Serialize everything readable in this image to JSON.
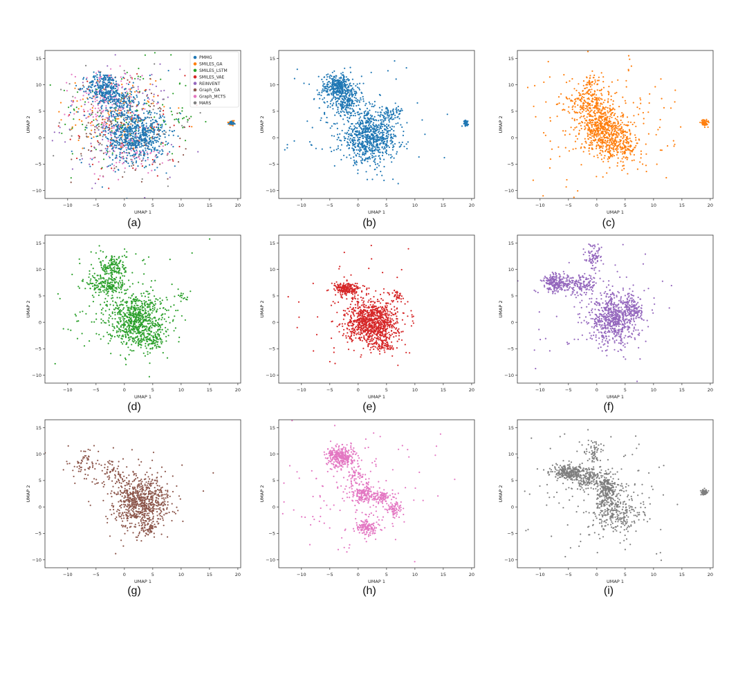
{
  "figure": {
    "panel_letters": [
      "(a)",
      "(b)",
      "(c)",
      "(d)",
      "(e)",
      "(f)",
      "(g)",
      "(h)",
      "(i)"
    ]
  },
  "axis": {
    "xlabel": "UMAP 1",
    "ylabel": "UMAP 2",
    "x_ticks": [
      "−10",
      "−5",
      "0",
      "5",
      "10",
      "15",
      "20"
    ],
    "y_ticks": [
      "15",
      "10",
      "5",
      "0",
      "−5",
      "−10"
    ]
  },
  "legend": {
    "entries": [
      "PMMG",
      "SMILES_GA",
      "SMILES_LSTM",
      "SMILES_VAE",
      "REINVENT",
      "Graph_GA",
      "Graph_MCTS",
      "MARS"
    ]
  },
  "chart_data": [
    {
      "panel": "(a)",
      "type": "scatter",
      "title": "",
      "xlabel": "UMAP 1",
      "ylabel": "UMAP 2",
      "xlim": [
        -14,
        20.5
      ],
      "ylim": [
        -11.5,
        16.5
      ],
      "legend_position": "top-right",
      "series": [
        {
          "name": "SMILES_GA",
          "color": "#ff7f0e",
          "clusters": [
            {
              "cx": -2,
              "cy": 5,
              "sx": 5,
              "sy": 4,
              "n": 120
            },
            {
              "cx": 18.9,
              "cy": 2.8,
              "sx": 0.3,
              "sy": 0.3,
              "n": 40
            }
          ]
        },
        {
          "name": "SMILES_LSTM",
          "color": "#2ca02c",
          "clusters": [
            {
              "cx": 0,
              "cy": 4,
              "sx": 6,
              "sy": 5,
              "n": 110
            },
            {
              "cx": 10.5,
              "cy": 3.5,
              "sx": 0.8,
              "sy": 0.5,
              "n": 10
            }
          ]
        },
        {
          "name": "SMILES_VAE",
          "color": "#d62728",
          "clusters": [
            {
              "cx": 1,
              "cy": 2,
              "sx": 5,
              "sy": 5,
              "n": 80
            }
          ]
        },
        {
          "name": "REINVENT",
          "color": "#9467bd",
          "clusters": [
            {
              "cx": -1,
              "cy": 3,
              "sx": 5,
              "sy": 5,
              "n": 110
            }
          ]
        },
        {
          "name": "Graph_GA",
          "color": "#8c564b",
          "clusters": [
            {
              "cx": 1,
              "cy": 1,
              "sx": 5,
              "sy": 5,
              "n": 110
            }
          ]
        },
        {
          "name": "Graph_MCTS",
          "color": "#e377c2",
          "clusters": [
            {
              "cx": -3,
              "cy": 7,
              "sx": 3,
              "sy": 3,
              "n": 160
            },
            {
              "cx": 1,
              "cy": -3,
              "sx": 3,
              "sy": 2,
              "n": 80
            }
          ]
        },
        {
          "name": "MARS",
          "color": "#7f7f7f",
          "clusters": [
            {
              "cx": 0,
              "cy": 3,
              "sx": 6,
              "sy": 6,
              "n": 90
            }
          ]
        },
        {
          "name": "PMMG",
          "color": "#1f77b4",
          "clusters": [
            {
              "cx": -3.5,
              "cy": 9.5,
              "sx": 1.6,
              "sy": 1.4,
              "n": 260
            },
            {
              "cx": -1,
              "cy": 7,
              "sx": 1.6,
              "sy": 1.2,
              "n": 140
            },
            {
              "cx": 2,
              "cy": 0.5,
              "sx": 2.6,
              "sy": 2.5,
              "n": 650
            },
            {
              "cx": 18.9,
              "cy": 2.8,
              "sx": 0.25,
              "sy": 0.25,
              "n": 20
            },
            {
              "cx": 0,
              "cy": 3,
              "sx": 5,
              "sy": 5,
              "n": 60
            }
          ]
        }
      ]
    },
    {
      "panel": "(b)",
      "type": "scatter",
      "xlabel": "UMAP 1",
      "ylabel": "UMAP 2",
      "xlim": [
        -14,
        20.5
      ],
      "ylim": [
        -11.5,
        16.5
      ],
      "series": [
        {
          "name": "PMMG",
          "color": "#1f77b4",
          "clusters": [
            {
              "cx": -3.5,
              "cy": 9.5,
              "sx": 1.6,
              "sy": 1.3,
              "n": 380
            },
            {
              "cx": -2,
              "cy": 6.5,
              "sx": 1.3,
              "sy": 1.1,
              "n": 160
            },
            {
              "cx": 2,
              "cy": 0,
              "sx": 2.5,
              "sy": 2.3,
              "n": 750
            },
            {
              "cx": 6,
              "cy": 4.5,
              "sx": 1,
              "sy": 0.8,
              "n": 60
            },
            {
              "cx": 18.9,
              "cy": 2.8,
              "sx": 0.25,
              "sy": 0.25,
              "n": 40
            },
            {
              "cx": 0,
              "cy": 3,
              "sx": 6,
              "sy": 6,
              "n": 90
            }
          ]
        }
      ]
    },
    {
      "panel": "(c)",
      "type": "scatter",
      "xlabel": "UMAP 1",
      "ylabel": "UMAP 2",
      "xlim": [
        -14,
        20.5
      ],
      "ylim": [
        -11.5,
        16.5
      ],
      "series": [
        {
          "name": "SMILES_GA",
          "color": "#ff7f0e",
          "clusters": [
            {
              "cx": -1,
              "cy": 6,
              "sx": 2,
              "sy": 1.5,
              "n": 200
            },
            {
              "cx": 1,
              "cy": 1.5,
              "sx": 1.8,
              "sy": 1.8,
              "n": 450
            },
            {
              "cx": 4,
              "cy": -1.5,
              "sx": 2,
              "sy": 1.5,
              "n": 220
            },
            {
              "cx": -1,
              "cy": 10,
              "sx": 1,
              "sy": 1,
              "n": 60
            },
            {
              "cx": 19,
              "cy": 2.8,
              "sx": 0.3,
              "sy": 0.3,
              "n": 70
            },
            {
              "cx": 1,
              "cy": 3,
              "sx": 6,
              "sy": 6,
              "n": 220
            }
          ]
        }
      ]
    },
    {
      "panel": "(d)",
      "type": "scatter",
      "xlabel": "UMAP 1",
      "ylabel": "UMAP 2",
      "xlim": [
        -14,
        20.5
      ],
      "ylim": [
        -11.5,
        16.5
      ],
      "series": [
        {
          "name": "SMILES_LSTM",
          "color": "#2ca02c",
          "clusters": [
            {
              "cx": -2,
              "cy": 10.5,
              "sx": 1.2,
              "sy": 1.3,
              "n": 160
            },
            {
              "cx": -3,
              "cy": 7,
              "sx": 1.8,
              "sy": 1,
              "n": 180
            },
            {
              "cx": 2,
              "cy": 0.5,
              "sx": 2.5,
              "sy": 2.4,
              "n": 700
            },
            {
              "cx": 4.5,
              "cy": -3.5,
              "sx": 1.2,
              "sy": 1.2,
              "n": 90
            },
            {
              "cx": 10.5,
              "cy": 5,
              "sx": 0.7,
              "sy": 0.5,
              "n": 15
            },
            {
              "cx": 1,
              "cy": 3,
              "sx": 6,
              "sy": 6,
              "n": 120
            }
          ]
        }
      ]
    },
    {
      "panel": "(e)",
      "type": "scatter",
      "xlabel": "UMAP 1",
      "ylabel": "UMAP 2",
      "xlim": [
        -14,
        20.5
      ],
      "ylim": [
        -11.5,
        16.5
      ],
      "series": [
        {
          "name": "SMILES_VAE",
          "color": "#d62728",
          "clusters": [
            {
              "cx": -2,
              "cy": 6.3,
              "sx": 1.1,
              "sy": 0.6,
              "n": 200
            },
            {
              "cx": 2.5,
              "cy": 0,
              "sx": 2.2,
              "sy": 2,
              "n": 950
            },
            {
              "cx": 4.5,
              "cy": -4.5,
              "sx": 0.8,
              "sy": 0.6,
              "n": 60
            },
            {
              "cx": 7,
              "cy": 5,
              "sx": 0.5,
              "sy": 0.5,
              "n": 30
            },
            {
              "cx": 1,
              "cy": 3,
              "sx": 5,
              "sy": 5,
              "n": 100
            }
          ]
        }
      ]
    },
    {
      "panel": "(f)",
      "type": "scatter",
      "xlabel": "UMAP 1",
      "ylabel": "UMAP 2",
      "xlim": [
        -14,
        20.5
      ],
      "ylim": [
        -11.5,
        16.5
      ],
      "series": [
        {
          "name": "REINVENT",
          "color": "#9467bd",
          "clusters": [
            {
              "cx": -7,
              "cy": 7.5,
              "sx": 1.3,
              "sy": 0.9,
              "n": 220
            },
            {
              "cx": -2.5,
              "cy": 7,
              "sx": 1.5,
              "sy": 1,
              "n": 140
            },
            {
              "cx": -0.5,
              "cy": 12.5,
              "sx": 0.7,
              "sy": 1.2,
              "n": 70
            },
            {
              "cx": 3,
              "cy": 0.5,
              "sx": 2.2,
              "sy": 2.4,
              "n": 650
            },
            {
              "cx": 6.5,
              "cy": 2.5,
              "sx": 1,
              "sy": 1,
              "n": 90
            },
            {
              "cx": 1,
              "cy": 3,
              "sx": 6,
              "sy": 6,
              "n": 70
            }
          ]
        }
      ]
    },
    {
      "panel": "(g)",
      "type": "scatter",
      "xlabel": "UMAP 1",
      "ylabel": "UMAP 2",
      "xlim": [
        -14,
        20.5
      ],
      "ylim": [
        -11.5,
        16.5
      ],
      "series": [
        {
          "name": "Graph_GA",
          "color": "#8c564b",
          "clusters": [
            {
              "cx": 3,
              "cy": 1,
              "sx": 2.4,
              "sy": 2.4,
              "n": 700
            },
            {
              "cx": -7,
              "cy": 8,
              "sx": 1.2,
              "sy": 1.5,
              "n": 60
            },
            {
              "cx": -2,
              "cy": 6.5,
              "sx": 1.5,
              "sy": 1.5,
              "n": 70
            },
            {
              "cx": 4.5,
              "cy": -4,
              "sx": 0.8,
              "sy": 0.8,
              "n": 60
            },
            {
              "cx": 1,
              "cy": 3,
              "sx": 5,
              "sy": 5,
              "n": 60
            }
          ]
        }
      ]
    },
    {
      "panel": "(h)",
      "type": "scatter",
      "xlabel": "UMAP 1",
      "ylabel": "UMAP 2",
      "xlim": [
        -14,
        20.5
      ],
      "ylim": [
        -11.5,
        16.5
      ],
      "series": [
        {
          "name": "Graph_MCTS",
          "color": "#e377c2",
          "clusters": [
            {
              "cx": -3,
              "cy": 9.5,
              "sx": 1.2,
              "sy": 1,
              "n": 320
            },
            {
              "cx": 1,
              "cy": 2.5,
              "sx": 1,
              "sy": 1,
              "n": 140
            },
            {
              "cx": 4,
              "cy": 2,
              "sx": 1,
              "sy": 0.6,
              "n": 100
            },
            {
              "cx": 1.5,
              "cy": -4,
              "sx": 1,
              "sy": 0.7,
              "n": 130
            },
            {
              "cx": 6.5,
              "cy": -0.5,
              "sx": 0.6,
              "sy": 0.8,
              "n": 70
            },
            {
              "cx": -0.5,
              "cy": 6,
              "sx": 0.8,
              "sy": 0.8,
              "n": 50
            },
            {
              "cx": 0,
              "cy": 2,
              "sx": 6,
              "sy": 5,
              "n": 140
            }
          ]
        }
      ]
    },
    {
      "panel": "(i)",
      "type": "scatter",
      "xlabel": "UMAP 1",
      "ylabel": "UMAP 2",
      "xlim": [
        -14,
        20.5
      ],
      "ylim": [
        -11.5,
        16.5
      ],
      "series": [
        {
          "name": "MARS",
          "color": "#7f7f7f",
          "clusters": [
            {
              "cx": -5,
              "cy": 6.5,
              "sx": 1.5,
              "sy": 0.7,
              "n": 260
            },
            {
              "cx": -1.5,
              "cy": 5.5,
              "sx": 1.4,
              "sy": 1,
              "n": 160
            },
            {
              "cx": 1.8,
              "cy": 3.5,
              "sx": 0.8,
              "sy": 1.3,
              "n": 220
            },
            {
              "cx": 3,
              "cy": -1,
              "sx": 2.3,
              "sy": 2,
              "n": 280
            },
            {
              "cx": -0.5,
              "cy": 10.5,
              "sx": 0.8,
              "sy": 1,
              "n": 60
            },
            {
              "cx": 19,
              "cy": 2.8,
              "sx": 0.3,
              "sy": 0.25,
              "n": 70
            },
            {
              "cx": 1,
              "cy": 3,
              "sx": 6,
              "sy": 6,
              "n": 130
            }
          ]
        }
      ]
    }
  ]
}
